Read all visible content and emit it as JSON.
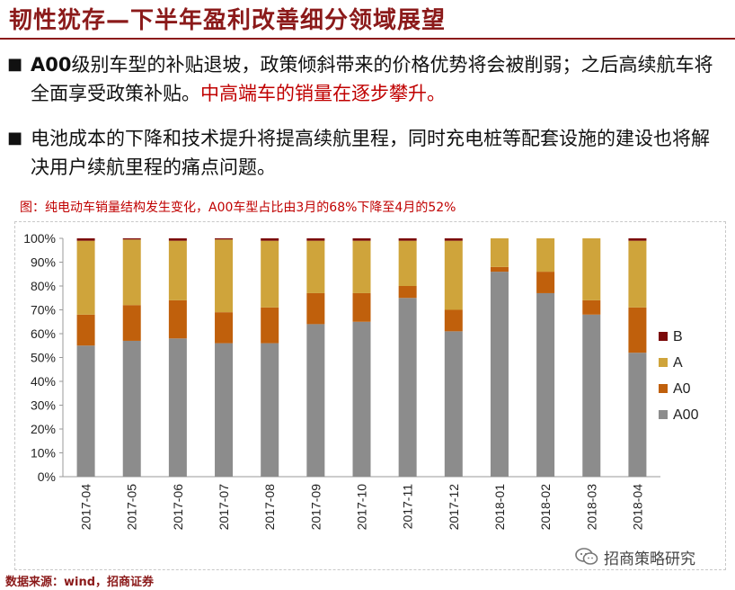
{
  "page": {
    "title": "韧性犹存—下半年盈利改善细分领域展望",
    "bullets": [
      {
        "bold": "A00",
        "text": "级别车型的补贴退坡，政策倾斜带来的价格优势将会被削弱；之后高续航车将全面享受政策补贴。",
        "highlight": "中高端车的销量在逐步攀升。"
      },
      {
        "bold": "",
        "text": "电池成本的下降和技术提升将提高续航里程，同时充电桩等配套设施的建设也将解决用户续航里程的痛点问题。",
        "highlight": ""
      }
    ],
    "caption": "图：纯电动车销量结构发生变化，A00车型占比由3月的68%下降至4月的52%",
    "source": "数据来源：wind，招商证券",
    "logo_text": "招商策略研究"
  },
  "colors": {
    "brand": "#8B1A1A",
    "highlight": "#C00000",
    "A00": "#8C8C8C",
    "A0": "#C0600C",
    "A": "#CFA43B",
    "B": "#7B0A0A"
  },
  "chart_data": {
    "type": "bar",
    "stacked": true,
    "title": "",
    "xlabel": "",
    "ylabel": "",
    "ylim": [
      0,
      100
    ],
    "yticks": [
      "0%",
      "10%",
      "20%",
      "30%",
      "40%",
      "50%",
      "60%",
      "70%",
      "80%",
      "90%",
      "100%"
    ],
    "categories": [
      "2017-04",
      "2017-05",
      "2017-06",
      "2017-07",
      "2017-08",
      "2017-09",
      "2017-10",
      "2017-11",
      "2017-12",
      "2018-01",
      "2018-02",
      "2018-03",
      "2018-04"
    ],
    "series": [
      {
        "name": "A00",
        "color": "#8C8C8C",
        "values": [
          55,
          57,
          58,
          56,
          56,
          64,
          65,
          75,
          61,
          86,
          77,
          68,
          52
        ]
      },
      {
        "name": "A0",
        "color": "#C0600C",
        "values": [
          13,
          15,
          16,
          13,
          15,
          13,
          12,
          5,
          9,
          2,
          9,
          6,
          19
        ]
      },
      {
        "name": "A",
        "color": "#CFA43B",
        "values": [
          31,
          27.5,
          25,
          30.5,
          28,
          22,
          22,
          19,
          29,
          12,
          14,
          26,
          28
        ]
      },
      {
        "name": "B",
        "color": "#7B0A0A",
        "values": [
          1,
          0.5,
          1,
          0.5,
          1,
          1,
          1,
          1,
          1,
          0,
          0,
          0,
          1
        ]
      }
    ],
    "legend": {
      "position": "right",
      "order": [
        "B",
        "A",
        "A0",
        "A00"
      ]
    }
  }
}
